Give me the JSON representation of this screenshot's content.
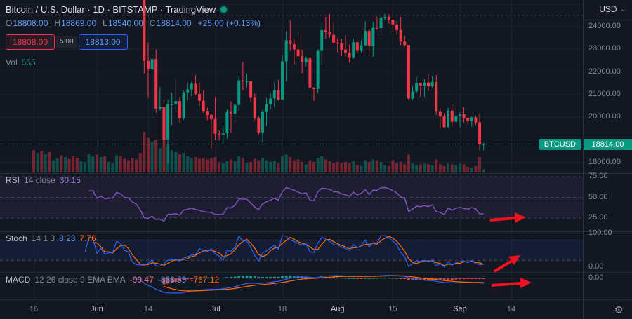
{
  "header": {
    "title": "Bitcoin / U.S. Dollar · 1D · BITSTAMP · TradingView",
    "ohlc": {
      "o_label": "O",
      "o": "18808.00",
      "h_label": "H",
      "h": "18869.00",
      "l_label": "L",
      "l": "18540.00",
      "c_label": "C",
      "c": "18814.00",
      "change": "+25.00 (+0.13%)"
    },
    "bid": "18808.00",
    "spread": "5.00",
    "ask": "18813.00",
    "vol_label": "Vol",
    "vol_value": "555",
    "currency": "USD"
  },
  "icons": {
    "gear": "⚙",
    "caret": "⌄"
  },
  "price_scale": {
    "ticks": [
      "24000.00",
      "23000.00",
      "22000.00",
      "21000.00",
      "20000.00",
      "18000.00"
    ],
    "symbol_tag": "BTCUSD",
    "last_price": "18814.00"
  },
  "time_scale": [
    {
      "label": "16",
      "day": 0,
      "major": false
    },
    {
      "label": "Jun",
      "day": 16,
      "major": true
    },
    {
      "label": "14",
      "day": 29,
      "major": false
    },
    {
      "label": "Jul",
      "day": 46,
      "major": true
    },
    {
      "label": "18",
      "day": 63,
      "major": false
    },
    {
      "label": "Aug",
      "day": 77,
      "major": true
    },
    {
      "label": "15",
      "day": 91,
      "major": false
    },
    {
      "label": "Sep",
      "day": 108,
      "major": true
    },
    {
      "label": "14",
      "day": 121,
      "major": false
    }
  ],
  "indicators": {
    "rsi": {
      "name": "RSI",
      "params": "14 close",
      "value": "30.15",
      "levels": [
        "75.00",
        "50.00",
        "25.00"
      ]
    },
    "stoch": {
      "name": "Stoch",
      "params": "14 1 3",
      "k": "8.23",
      "d": "7.76",
      "levels": [
        "100.00",
        "0.00"
      ]
    },
    "macd": {
      "name": "MACD",
      "params": "12 26 close 9 EMA EMA",
      "hist": "-99.47",
      "macd": "-866.59",
      "signal": "-767.12",
      "levels": [
        "0.00"
      ]
    }
  },
  "colors": {
    "background": "#131722",
    "text": "#d1d4dc",
    "muted": "#868b93",
    "grid": "#1d2230",
    "separator": "#2a2e39",
    "up": "#089981",
    "down": "#f23645",
    "volume_up": "rgba(8,153,129,0.45)",
    "volume_down": "rgba(242,54,69,0.45)",
    "rsi": "#7e57c2",
    "stoch_k": "#2962ff",
    "stoch_d": "#ff6d00",
    "macd_line": "#2962ff",
    "macd_signal": "#ff6d00",
    "hist_pos": "rgba(38,166,154,0.85)",
    "hist_neg": "rgba(239,83,80,0.85)",
    "band_rsi": "rgba(126,87,194,0.10)",
    "band_stoch": "rgba(41,98,255,0.08)",
    "level_line": "#6a6d78",
    "price_tag": "#089981",
    "arrow": "#f2121f"
  },
  "chart_data": {
    "type": "candlestick",
    "symbol": "BTCUSD",
    "exchange": "BITSTAMP",
    "interval": "1D",
    "visible_price_range": [
      17500,
      25200
    ],
    "last": {
      "open": 18808,
      "high": 18869,
      "low": 18540,
      "close": 18814,
      "change": 25.0,
      "change_pct": 0.13
    },
    "candles": [
      [
        31300,
        31300,
        29100,
        29850
      ],
      [
        29850,
        30700,
        29450,
        30430
      ],
      [
        30430,
        30700,
        28600,
        28700
      ],
      [
        28700,
        30500,
        28650,
        30300
      ],
      [
        30300,
        30700,
        28750,
        29200
      ],
      [
        29200,
        29600,
        29000,
        29430
      ],
      [
        29430,
        30470,
        29250,
        30290
      ],
      [
        30290,
        30600,
        28900,
        29100
      ],
      [
        29100,
        29800,
        28650,
        29650
      ],
      [
        29650,
        30200,
        29300,
        29530
      ],
      [
        29530,
        29850,
        28000,
        29200
      ],
      [
        29200,
        29350,
        28250,
        28620
      ],
      [
        28620,
        29250,
        28500,
        29030
      ],
      [
        29030,
        29550,
        28840,
        29460
      ],
      [
        29460,
        32200,
        29300,
        31720
      ],
      [
        31720,
        32400,
        31200,
        31790
      ],
      [
        31790,
        31960,
        29300,
        29800
      ],
      [
        29800,
        30650,
        29600,
        30450
      ],
      [
        30450,
        30700,
        29350,
        29700
      ],
      [
        29700,
        29950,
        29480,
        29860
      ],
      [
        29860,
        30150,
        29560,
        29910
      ],
      [
        29910,
        31700,
        29890,
        31370
      ],
      [
        31370,
        31550,
        29220,
        31120
      ],
      [
        31120,
        31300,
        29880,
        30200
      ],
      [
        30200,
        30670,
        29940,
        30110
      ],
      [
        30110,
        30320,
        28900,
        29090
      ],
      [
        29090,
        29450,
        28100,
        28420
      ],
      [
        28420,
        28500,
        26150,
        26570
      ],
      [
        26570,
        26800,
        21930,
        22490
      ],
      [
        22490,
        23300,
        20850,
        22110
      ],
      [
        22110,
        22790,
        20100,
        22570
      ],
      [
        22570,
        22980,
        20200,
        20380
      ],
      [
        20380,
        21330,
        20270,
        20470
      ],
      [
        20470,
        20750,
        17600,
        19010
      ],
      [
        19010,
        20790,
        17960,
        20570
      ],
      [
        20570,
        21080,
        19650,
        20570
      ],
      [
        20570,
        21700,
        20350,
        20710
      ],
      [
        20710,
        20870,
        19770,
        19970
      ],
      [
        19970,
        21170,
        19890,
        21100
      ],
      [
        21100,
        21540,
        20740,
        21230
      ],
      [
        21230,
        21580,
        20930,
        21480
      ],
      [
        21480,
        21870,
        20970,
        21030
      ],
      [
        21030,
        21530,
        20500,
        20730
      ],
      [
        20730,
        21200,
        20180,
        20250
      ],
      [
        20250,
        20420,
        19870,
        20100
      ],
      [
        20100,
        20150,
        18630,
        19920
      ],
      [
        19920,
        20900,
        18980,
        19270
      ],
      [
        19270,
        19420,
        18970,
        19240
      ],
      [
        19240,
        19630,
        18780,
        19300
      ],
      [
        19300,
        20350,
        19060,
        20230
      ],
      [
        20230,
        20700,
        19320,
        20160
      ],
      [
        20160,
        20600,
        19790,
        20540
      ],
      [
        20540,
        21840,
        20250,
        21630
      ],
      [
        21630,
        22450,
        21210,
        21590
      ],
      [
        21590,
        21920,
        21320,
        21590
      ],
      [
        21590,
        21600,
        20680,
        20860
      ],
      [
        20860,
        21060,
        19870,
        19960
      ],
      [
        19960,
        20050,
        19240,
        19330
      ],
      [
        19330,
        20330,
        18910,
        20230
      ],
      [
        20230,
        20850,
        19600,
        20570
      ],
      [
        20570,
        21050,
        20360,
        20830
      ],
      [
        20830,
        21550,
        20470,
        21190
      ],
      [
        21190,
        21650,
        20730,
        20780
      ],
      [
        20780,
        22720,
        20760,
        22470
      ],
      [
        22470,
        23800,
        21580,
        23400
      ],
      [
        23400,
        24280,
        22920,
        23230
      ],
      [
        23230,
        23440,
        22330,
        22990
      ],
      [
        22990,
        23760,
        22530,
        22690
      ],
      [
        22690,
        22980,
        21940,
        22450
      ],
      [
        22450,
        22660,
        22260,
        22600
      ],
      [
        22600,
        22670,
        21270,
        21310
      ],
      [
        21310,
        21330,
        20730,
        21250
      ],
      [
        21250,
        23000,
        21060,
        22930
      ],
      [
        22930,
        24180,
        22340,
        23840
      ],
      [
        23840,
        24440,
        23450,
        23770
      ],
      [
        23770,
        24550,
        23520,
        23640
      ],
      [
        23640,
        24190,
        23260,
        23290
      ],
      [
        23290,
        23500,
        22860,
        23270
      ],
      [
        23270,
        23440,
        22700,
        22980
      ],
      [
        22980,
        23630,
        22680,
        22850
      ],
      [
        22850,
        23210,
        22400,
        22620
      ],
      [
        22620,
        23470,
        22580,
        23310
      ],
      [
        23310,
        23330,
        22810,
        22930
      ],
      [
        22930,
        23390,
        22850,
        23180
      ],
      [
        23180,
        24240,
        23160,
        23810
      ],
      [
        23810,
        23900,
        22850,
        23150
      ],
      [
        23150,
        24220,
        22660,
        23950
      ],
      [
        23950,
        24450,
        23860,
        23930
      ],
      [
        23930,
        24450,
        23600,
        24400
      ],
      [
        24400,
        24580,
        24300,
        24440
      ],
      [
        24440,
        24550,
        24150,
        24300
      ],
      [
        24300,
        24560,
        23780,
        24090
      ],
      [
        24090,
        24250,
        23670,
        23850
      ],
      [
        23850,
        24430,
        23180,
        23340
      ],
      [
        23340,
        23590,
        23120,
        23190
      ],
      [
        23190,
        23200,
        20760,
        20830
      ],
      [
        20830,
        21380,
        20770,
        21140
      ],
      [
        21140,
        21800,
        21080,
        21510
      ],
      [
        21510,
        21520,
        20890,
        21400
      ],
      [
        21400,
        21680,
        20890,
        21530
      ],
      [
        21530,
        21900,
        21150,
        21370
      ],
      [
        21370,
        21820,
        21310,
        21560
      ],
      [
        21560,
        21870,
        20110,
        20240
      ],
      [
        20240,
        20390,
        19520,
        20040
      ],
      [
        20040,
        20170,
        19550,
        19560
      ],
      [
        19560,
        20430,
        19540,
        20290
      ],
      [
        20290,
        20580,
        19560,
        19800
      ],
      [
        19800,
        20480,
        19790,
        20050
      ],
      [
        20050,
        20200,
        19560,
        20130
      ],
      [
        20130,
        20440,
        19750,
        19950
      ],
      [
        19950,
        19980,
        19660,
        19830
      ],
      [
        19830,
        20030,
        19590,
        19990
      ],
      [
        19990,
        20060,
        19640,
        19770
      ],
      [
        19770,
        20180,
        18540,
        18790
      ],
      [
        18808,
        18869,
        18540,
        18814
      ]
    ],
    "volumes": [
      55,
      48,
      52,
      45,
      50,
      30,
      35,
      42,
      38,
      33,
      40,
      36,
      28,
      25,
      45,
      40,
      44,
      38,
      40,
      26,
      24,
      42,
      40,
      34,
      30,
      36,
      32,
      48,
      100,
      85,
      75,
      80,
      60,
      90,
      70,
      55,
      50,
      45,
      48,
      40,
      35,
      38,
      34,
      36,
      32,
      35,
      38,
      25,
      22,
      28,
      32,
      28,
      40,
      36,
      24,
      26,
      34,
      30,
      36,
      30,
      26,
      28,
      24,
      40,
      44,
      38,
      30,
      32,
      26,
      20,
      30,
      26,
      36,
      40,
      32,
      28,
      24,
      26,
      24,
      26,
      24,
      28,
      18,
      16,
      30,
      26,
      32,
      30,
      26,
      18,
      16,
      30,
      24,
      26,
      20,
      44,
      22,
      18,
      20,
      22,
      20,
      18,
      32,
      20,
      16,
      22,
      20,
      18,
      22,
      20,
      14,
      12,
      16,
      38,
      8
    ]
  }
}
